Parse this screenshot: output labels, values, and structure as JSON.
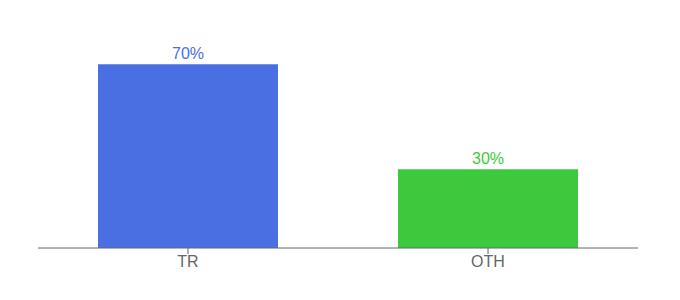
{
  "chart_data": {
    "type": "bar",
    "categories": [
      "TR",
      "OTH"
    ],
    "values": [
      70,
      30
    ],
    "value_labels": [
      "70%",
      "30%"
    ],
    "colors": [
      "#4a6fe3",
      "#3dc93d"
    ],
    "ylim": [
      0,
      80
    ],
    "data_labels": true,
    "tick_labels": "x",
    "grid": false
  }
}
